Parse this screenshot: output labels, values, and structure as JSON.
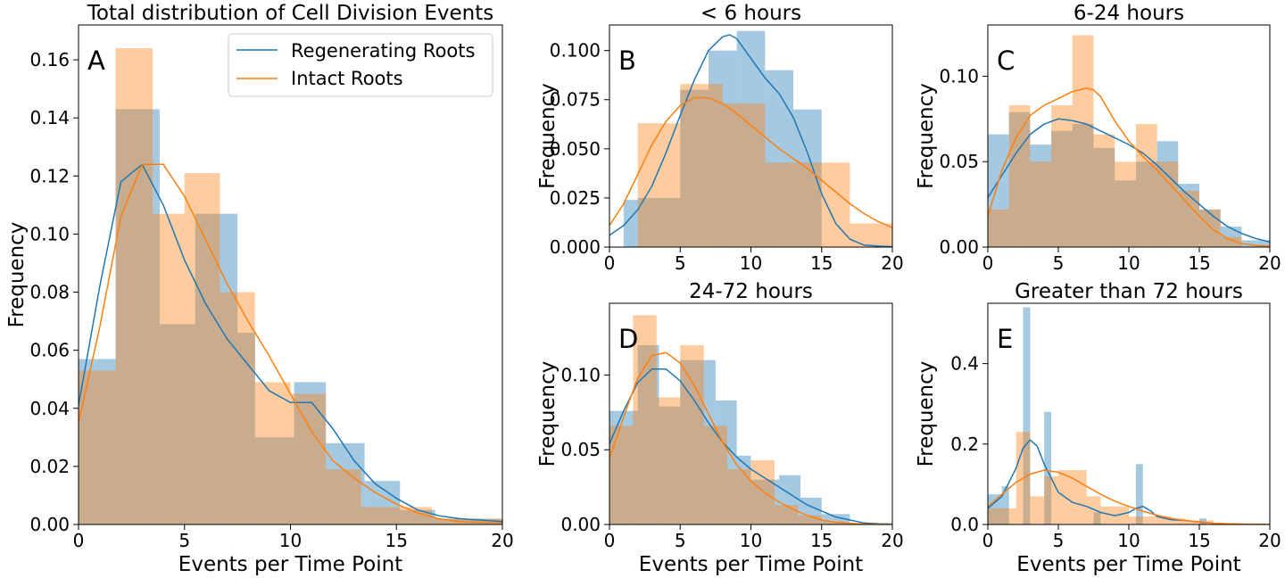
{
  "colors": {
    "regenerating": "#1f77b4",
    "intact": "#ff7f0e",
    "regenerating_fill": "#1f77b4",
    "intact_fill": "#ff7f0e",
    "fill_opacity": 0.4
  },
  "legend": {
    "placement": "top-right of panel A",
    "entries": [
      "Regenerating Roots",
      "Intact Roots"
    ]
  },
  "chart_data": [
    {
      "id": "A",
      "type": "bar",
      "panel_letter": "A",
      "title": "Total distribution of Cell Division Events",
      "xlabel": "Events per Time Point",
      "ylabel": "Frequency",
      "xlim": [
        0,
        20
      ],
      "ylim": [
        0,
        0.172
      ],
      "xticks": [
        0,
        5,
        10,
        15,
        20
      ],
      "yticks": [
        0.0,
        0.02,
        0.04,
        0.06,
        0.08,
        0.1,
        0.12,
        0.14,
        0.16
      ],
      "ytick_labels": [
        "0.00",
        "0.02",
        "0.04",
        "0.06",
        "0.08",
        "0.10",
        "0.12",
        "0.14",
        "0.16"
      ],
      "grid": false,
      "histograms": [
        {
          "name": "Regenerating Roots",
          "color_key": "regenerating",
          "edges": [
            0,
            1.75,
            3.83,
            5.5,
            7.5,
            8.33,
            10.17,
            11.67,
            13.5,
            15.17,
            16.83,
            20
          ],
          "values": [
            0.057,
            0.143,
            0.069,
            0.107,
            0.066,
            0.03,
            0.049,
            0.028,
            0.015,
            0.005,
            0.002
          ]
        },
        {
          "name": "Intact Roots",
          "color_key": "intact",
          "edges": [
            0,
            1.75,
            3.5,
            5.0,
            6.67,
            8.33,
            10.0,
            11.67,
            13.33,
            15.0,
            16.67,
            20
          ],
          "values": [
            0.053,
            0.164,
            0.107,
            0.121,
            0.08,
            0.049,
            0.045,
            0.019,
            0.006,
            0.006,
            0.002
          ]
        }
      ],
      "kde": [
        {
          "name": "Regenerating Roots",
          "color_key": "regenerating",
          "x": [
            0,
            1,
            2,
            3,
            4,
            5,
            6,
            7,
            8,
            9,
            10,
            11,
            12,
            13,
            14,
            15,
            16,
            17,
            18,
            19,
            20
          ],
          "y": [
            0.041,
            0.082,
            0.118,
            0.124,
            0.11,
            0.091,
            0.076,
            0.064,
            0.055,
            0.046,
            0.042,
            0.042,
            0.033,
            0.022,
            0.014,
            0.009,
            0.005,
            0.003,
            0.002,
            0.0015,
            0.001
          ]
        },
        {
          "name": "Intact Roots",
          "color_key": "intact",
          "x": [
            0,
            1,
            2,
            3,
            4,
            5,
            6,
            7,
            8,
            9,
            10,
            11,
            12,
            13,
            14,
            15,
            16,
            17,
            18,
            19,
            20
          ],
          "y": [
            0.035,
            0.068,
            0.106,
            0.124,
            0.124,
            0.113,
            0.098,
            0.083,
            0.07,
            0.058,
            0.045,
            0.032,
            0.022,
            0.016,
            0.011,
            0.007,
            0.004,
            0.002,
            0.001,
            0.0007,
            0.0005
          ]
        }
      ]
    },
    {
      "id": "B",
      "type": "bar",
      "panel_letter": "B",
      "title": "< 6 hours",
      "xlabel": "",
      "ylabel": "Frequency",
      "xlim": [
        0,
        20
      ],
      "ylim": [
        0,
        0.113
      ],
      "xticks": [
        0,
        5,
        10,
        15,
        20
      ],
      "yticks": [
        0,
        0.025,
        0.05,
        0.075,
        0.1
      ],
      "ytick_labels": [
        "0.000",
        "0.025",
        "0.050",
        "0.075",
        "0.100"
      ],
      "grid": false,
      "histograms": [
        {
          "name": "Regenerating Roots",
          "color_key": "regenerating",
          "edges": [
            1,
            2,
            5,
            7,
            9,
            11,
            13,
            15
          ],
          "values": [
            0.024,
            0.025,
            0.08,
            0.1,
            0.11,
            0.09,
            0.07
          ]
        },
        {
          "name": "Intact Roots",
          "color_key": "intact",
          "edges": [
            2,
            5,
            8,
            11,
            15,
            17,
            20
          ],
          "values": [
            0.063,
            0.083,
            0.073,
            0.043,
            0.043,
            0.012
          ]
        }
      ],
      "kde": [
        {
          "name": "Regenerating Roots",
          "color_key": "regenerating",
          "x": [
            0,
            1,
            2,
            3,
            4,
            5,
            6,
            7,
            8,
            8.5,
            9,
            10,
            11,
            12,
            13,
            14,
            15,
            16,
            17,
            18,
            19,
            20
          ],
          "y": [
            0.006,
            0.011,
            0.019,
            0.031,
            0.048,
            0.067,
            0.085,
            0.1,
            0.107,
            0.108,
            0.106,
            0.096,
            0.086,
            0.078,
            0.066,
            0.048,
            0.027,
            0.012,
            0.004,
            0.001,
            0.0005,
            0.0002
          ]
        },
        {
          "name": "Intact Roots",
          "color_key": "intact",
          "x": [
            0,
            1,
            2,
            3,
            4,
            5,
            6,
            7,
            8,
            9,
            10,
            11,
            12,
            13,
            14,
            15,
            16,
            17,
            18,
            19,
            20
          ],
          "y": [
            0.011,
            0.022,
            0.037,
            0.052,
            0.064,
            0.072,
            0.076,
            0.076,
            0.073,
            0.068,
            0.062,
            0.056,
            0.05,
            0.045,
            0.04,
            0.034,
            0.028,
            0.022,
            0.017,
            0.013,
            0.01
          ]
        }
      ]
    },
    {
      "id": "C",
      "type": "bar",
      "panel_letter": "C",
      "title": "6-24 hours",
      "xlabel": "",
      "ylabel": "Frequency",
      "xlim": [
        0,
        20
      ],
      "ylim": [
        0,
        0.13
      ],
      "xticks": [
        0,
        5,
        10,
        15,
        20
      ],
      "yticks": [
        0,
        0.05,
        0.1
      ],
      "ytick_labels": [
        "0.00",
        "0.05",
        "0.10"
      ],
      "grid": false,
      "histograms": [
        {
          "name": "Regenerating Roots",
          "color_key": "regenerating",
          "edges": [
            0,
            1.5,
            3,
            4.5,
            6,
            7.5,
            9,
            10.5,
            12,
            13.5,
            15,
            16.5,
            18,
            20
          ],
          "values": [
            0.066,
            0.079,
            0.06,
            0.068,
            0.072,
            0.058,
            0.039,
            0.05,
            0.062,
            0.037,
            0.022,
            0.012,
            0.004
          ]
        },
        {
          "name": "Intact Roots",
          "color_key": "intact",
          "edges": [
            0,
            1.5,
            3,
            4.5,
            6,
            7.5,
            9,
            10.5,
            12,
            13.5,
            15,
            16.5,
            18
          ],
          "values": [
            0.022,
            0.083,
            0.05,
            0.083,
            0.124,
            0.066,
            0.05,
            0.072,
            0.05,
            0.033,
            0.022,
            0.006
          ]
        }
      ],
      "kde": [
        {
          "name": "Regenerating Roots",
          "color_key": "regenerating",
          "x": [
            0,
            1,
            2,
            3,
            4,
            5,
            6,
            7,
            8,
            9,
            10,
            11,
            12,
            13,
            14,
            15,
            16,
            17,
            18,
            19,
            20
          ],
          "y": [
            0.029,
            0.042,
            0.055,
            0.066,
            0.072,
            0.075,
            0.074,
            0.072,
            0.068,
            0.064,
            0.06,
            0.055,
            0.048,
            0.04,
            0.032,
            0.025,
            0.018,
            0.012,
            0.008,
            0.005,
            0.003
          ]
        },
        {
          "name": "Intact Roots",
          "color_key": "intact",
          "x": [
            0,
            1,
            2,
            3,
            4,
            5,
            6,
            7,
            7.5,
            8,
            9,
            10,
            11,
            12,
            13,
            14,
            15,
            16,
            17,
            18,
            19,
            20
          ],
          "y": [
            0.018,
            0.045,
            0.064,
            0.077,
            0.083,
            0.087,
            0.091,
            0.093,
            0.092,
            0.088,
            0.074,
            0.062,
            0.053,
            0.045,
            0.036,
            0.027,
            0.018,
            0.01,
            0.005,
            0.002,
            0.001,
            0.0005
          ]
        }
      ]
    },
    {
      "id": "D",
      "type": "bar",
      "panel_letter": "D",
      "title": "24-72 hours",
      "xlabel": "Events per Time Point",
      "ylabel": "Frequency",
      "xlim": [
        0,
        20
      ],
      "ylim": [
        0,
        0.148
      ],
      "xticks": [
        0,
        5,
        10,
        15,
        20
      ],
      "yticks": [
        0,
        0.05,
        0.1
      ],
      "ytick_labels": [
        "0.00",
        "0.05",
        "0.10"
      ],
      "grid": false,
      "histograms": [
        {
          "name": "Regenerating Roots",
          "color_key": "regenerating",
          "edges": [
            0,
            2,
            3.5,
            5,
            7.5,
            9,
            10,
            12,
            13.5,
            15,
            17
          ],
          "values": [
            0.076,
            0.12,
            0.079,
            0.11,
            0.083,
            0.046,
            0.03,
            0.033,
            0.018,
            0.007
          ]
        },
        {
          "name": "Intact Roots",
          "color_key": "intact",
          "edges": [
            0,
            1.67,
            3.33,
            5,
            6.67,
            8.33,
            10,
            11.67,
            13.33,
            15,
            16.67
          ],
          "values": [
            0.066,
            0.14,
            0.085,
            0.12,
            0.066,
            0.037,
            0.043,
            0.013,
            0.006,
            0.002
          ]
        }
      ],
      "kde": [
        {
          "name": "Regenerating Roots",
          "color_key": "regenerating",
          "x": [
            0,
            1,
            2,
            3,
            4,
            5,
            6,
            7,
            8,
            9,
            10,
            11,
            12,
            13,
            14,
            15,
            16,
            17,
            18,
            19,
            20
          ],
          "y": [
            0.054,
            0.076,
            0.095,
            0.104,
            0.104,
            0.096,
            0.083,
            0.068,
            0.055,
            0.045,
            0.037,
            0.031,
            0.025,
            0.019,
            0.013,
            0.009,
            0.005,
            0.003,
            0.001,
            0.0005,
            0.0003
          ]
        },
        {
          "name": "Intact Roots",
          "color_key": "intact",
          "x": [
            0,
            1,
            2,
            3,
            4,
            5,
            6,
            7,
            8,
            9,
            10,
            11,
            12,
            13,
            14,
            15,
            16,
            17,
            18,
            19,
            20
          ],
          "y": [
            0.044,
            0.072,
            0.098,
            0.113,
            0.115,
            0.108,
            0.093,
            0.074,
            0.055,
            0.04,
            0.029,
            0.021,
            0.015,
            0.01,
            0.006,
            0.003,
            0.0015,
            0.0007,
            0.0003,
            0.0001,
            0.0001
          ]
        }
      ]
    },
    {
      "id": "E",
      "type": "bar",
      "panel_letter": "E",
      "title": "Greater than 72 hours",
      "xlabel": "Events per Time Point",
      "ylabel": "Frequency",
      "xlim": [
        0,
        20
      ],
      "ylim": [
        0,
        0.55
      ],
      "xticks": [
        0,
        5,
        10,
        15,
        20
      ],
      "yticks": [
        0,
        0.2,
        0.4
      ],
      "ytick_labels": [
        "0.0",
        "0.2",
        "0.4"
      ],
      "grid": false,
      "histograms": [
        {
          "name": "Regenerating Roots",
          "color_key": "regenerating",
          "edges": [
            0,
            0.5,
            1,
            1.5,
            2,
            2.5,
            3,
            3.5,
            4,
            4.5,
            5,
            5.5,
            6,
            6.5,
            7,
            7.5,
            8,
            8.5,
            9,
            9.5,
            10,
            10.5,
            11,
            11.5,
            12,
            12.5,
            13,
            13.5,
            14,
            14.5,
            15,
            15.5
          ],
          "values": [
            0.075,
            0.075,
            0.095,
            0.0,
            0.0,
            0.54,
            0.0,
            0.0,
            0.28,
            0.0,
            0.0,
            0.0,
            0.0,
            0.0,
            0.0,
            0.03,
            0.0,
            0.0,
            0.0,
            0.0,
            0.0,
            0.15,
            0.0,
            0.0,
            0.0,
            0.0,
            0.0,
            0.0,
            0.0,
            0.0,
            0.015
          ]
        },
        {
          "name": "Intact Roots",
          "color_key": "intact",
          "edges": [
            0,
            1,
            2,
            3,
            4,
            5,
            6,
            7,
            8,
            9,
            10,
            11,
            12,
            13,
            14,
            15,
            16
          ],
          "values": [
            0.04,
            0.04,
            0.23,
            0.07,
            0.12,
            0.135,
            0.135,
            0.07,
            0.045,
            0.045,
            0.02,
            0.02,
            0.02,
            0.015,
            0.01,
            0.01
          ]
        }
      ],
      "kde": [
        {
          "name": "Regenerating Roots",
          "color_key": "regenerating",
          "x": [
            0,
            1,
            2,
            2.5,
            3,
            3.5,
            4,
            5,
            6,
            7,
            8,
            9,
            10,
            10.5,
            11,
            11.5,
            12,
            13,
            14,
            15,
            16,
            17,
            18,
            19,
            20
          ],
          "y": [
            0.04,
            0.07,
            0.14,
            0.19,
            0.21,
            0.195,
            0.15,
            0.08,
            0.055,
            0.045,
            0.03,
            0.022,
            0.03,
            0.04,
            0.045,
            0.035,
            0.02,
            0.012,
            0.01,
            0.006,
            0.003,
            0.001,
            0.0005,
            0.0002,
            0.0001
          ]
        },
        {
          "name": "Intact Roots",
          "color_key": "intact",
          "x": [
            0,
            1,
            2,
            3,
            4,
            5,
            6,
            7,
            8,
            9,
            10,
            11,
            12,
            13,
            14,
            15,
            16,
            17,
            18,
            19,
            20
          ],
          "y": [
            0.045,
            0.075,
            0.105,
            0.125,
            0.135,
            0.13,
            0.115,
            0.095,
            0.075,
            0.058,
            0.045,
            0.033,
            0.023,
            0.015,
            0.01,
            0.006,
            0.003,
            0.002,
            0.001,
            0.0005,
            0.0003
          ]
        }
      ]
    }
  ]
}
